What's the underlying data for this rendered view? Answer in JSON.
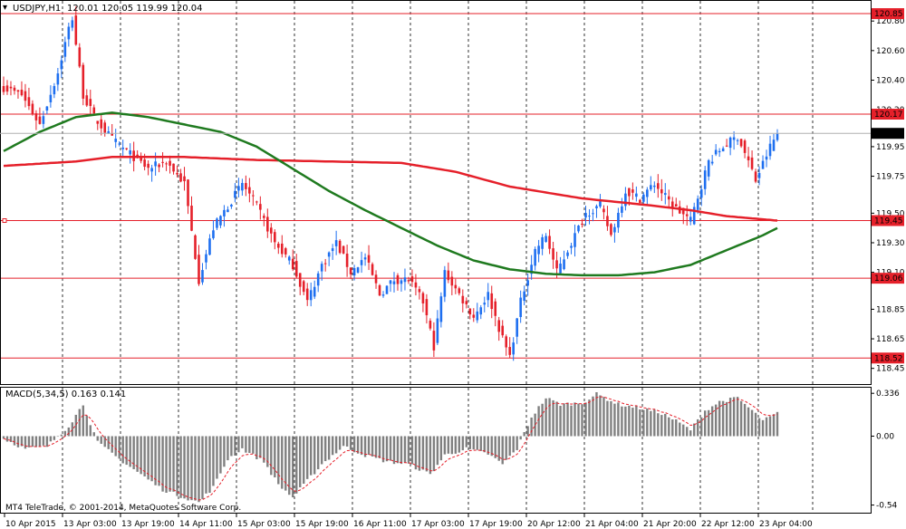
{
  "header": {
    "symbol": "USDJPY,H1",
    "ohlc": "120.01 120.05 119.99 120.04"
  },
  "macd_header": "MACD(5,34,5) 0.163 0.141",
  "copyright": "MT4 TeleTrade, © 2001-2014, MetaQuotes Software Corp.",
  "colors": {
    "bull": "#1e6ff0",
    "bear": "#e5202a",
    "ma_fast": "#1f7a1f",
    "ma_slow": "#e5202a",
    "level": "#e5202a",
    "hist": "#808080",
    "signal": "#e5202a"
  },
  "chart_data": {
    "type": "candlestick",
    "price_axis": {
      "range": [
        118.35,
        120.93
      ],
      "ticks": [
        "120.80",
        "120.60",
        "120.40",
        "120.20",
        "119.95",
        "119.75",
        "119.50",
        "119.30",
        "119.10",
        "118.85",
        "118.65",
        "118.45"
      ]
    },
    "levels": [
      {
        "value": 120.85,
        "label": "120.85"
      },
      {
        "value": 120.17,
        "label": "120.17"
      },
      {
        "value": 119.45,
        "label": "119.45"
      },
      {
        "value": 119.06,
        "label": "119.06"
      },
      {
        "value": 118.52,
        "label": "118.52"
      }
    ],
    "current_price": {
      "value": 120.04,
      "label": "120.04"
    },
    "time_labels": [
      "10 Apr 2015",
      "13 Apr 03:00",
      "13 Apr 19:00",
      "14 Apr 11:00",
      "15 Apr 03:00",
      "15 Apr 19:00",
      "16 Apr 11:00",
      "17 Apr 03:00",
      "17 Apr 19:00",
      "20 Apr 12:00",
      "21 Apr 04:00",
      "21 Apr 20:00",
      "22 Apr 12:00",
      "23 Apr 04:00"
    ],
    "macd_axis": {
      "range": [
        -0.6,
        0.38
      ],
      "ticks": [
        "0.336",
        "0.00",
        "-0.54"
      ]
    },
    "close_keypoints": [
      [
        0,
        120.35
      ],
      [
        5,
        120.3
      ],
      [
        10,
        120.1
      ],
      [
        15,
        120.45
      ],
      [
        18,
        120.75
      ],
      [
        19,
        120.82
      ],
      [
        22,
        120.3
      ],
      [
        25,
        120.15
      ],
      [
        30,
        120.0
      ],
      [
        35,
        119.9
      ],
      [
        40,
        119.8
      ],
      [
        45,
        119.85
      ],
      [
        50,
        119.7
      ],
      [
        54,
        119.05
      ],
      [
        58,
        119.4
      ],
      [
        62,
        119.55
      ],
      [
        66,
        119.7
      ],
      [
        70,
        119.55
      ],
      [
        75,
        119.3
      ],
      [
        80,
        119.15
      ],
      [
        84,
        118.9
      ],
      [
        88,
        119.15
      ],
      [
        92,
        119.3
      ],
      [
        96,
        119.1
      ],
      [
        100,
        119.2
      ],
      [
        104,
        118.95
      ],
      [
        108,
        119.05
      ],
      [
        112,
        119.05
      ],
      [
        116,
        118.9
      ],
      [
        119,
        118.6
      ],
      [
        122,
        119.1
      ],
      [
        126,
        118.95
      ],
      [
        130,
        118.8
      ],
      [
        134,
        118.95
      ],
      [
        138,
        118.65
      ],
      [
        140,
        118.53
      ],
      [
        143,
        118.9
      ],
      [
        147,
        119.25
      ],
      [
        150,
        119.35
      ],
      [
        153,
        119.1
      ],
      [
        157,
        119.3
      ],
      [
        161,
        119.5
      ],
      [
        165,
        119.55
      ],
      [
        168,
        119.35
      ],
      [
        172,
        119.65
      ],
      [
        176,
        119.6
      ],
      [
        180,
        119.7
      ],
      [
        185,
        119.55
      ],
      [
        190,
        119.45
      ],
      [
        195,
        119.85
      ],
      [
        199,
        119.95
      ],
      [
        203,
        120.02
      ],
      [
        206,
        119.85
      ],
      [
        208,
        119.72
      ],
      [
        212,
        119.95
      ],
      [
        214,
        120.04
      ]
    ],
    "ma_fast_keypoints": [
      [
        0,
        119.92
      ],
      [
        10,
        120.05
      ],
      [
        20,
        120.15
      ],
      [
        30,
        120.18
      ],
      [
        40,
        120.15
      ],
      [
        50,
        120.1
      ],
      [
        60,
        120.05
      ],
      [
        70,
        119.95
      ],
      [
        80,
        119.8
      ],
      [
        90,
        119.65
      ],
      [
        100,
        119.52
      ],
      [
        110,
        119.4
      ],
      [
        120,
        119.28
      ],
      [
        130,
        119.18
      ],
      [
        140,
        119.12
      ],
      [
        150,
        119.09
      ],
      [
        160,
        119.08
      ],
      [
        170,
        119.08
      ],
      [
        180,
        119.1
      ],
      [
        190,
        119.15
      ],
      [
        200,
        119.25
      ],
      [
        210,
        119.35
      ],
      [
        214,
        119.4
      ]
    ],
    "ma_slow_keypoints": [
      [
        0,
        119.82
      ],
      [
        20,
        119.85
      ],
      [
        30,
        119.88
      ],
      [
        50,
        119.88
      ],
      [
        70,
        119.86
      ],
      [
        90,
        119.85
      ],
      [
        110,
        119.84
      ],
      [
        125,
        119.78
      ],
      [
        140,
        119.68
      ],
      [
        160,
        119.6
      ],
      [
        180,
        119.55
      ],
      [
        190,
        119.52
      ],
      [
        200,
        119.48
      ],
      [
        214,
        119.45
      ]
    ],
    "macd_hist_keypoints": [
      [
        0,
        -0.02
      ],
      [
        6,
        -0.1
      ],
      [
        12,
        -0.08
      ],
      [
        18,
        0.08
      ],
      [
        22,
        0.25
      ],
      [
        26,
        -0.05
      ],
      [
        32,
        -0.18
      ],
      [
        38,
        -0.3
      ],
      [
        44,
        -0.42
      ],
      [
        50,
        -0.48
      ],
      [
        54,
        -0.52
      ],
      [
        58,
        -0.4
      ],
      [
        62,
        -0.18
      ],
      [
        66,
        -0.1
      ],
      [
        72,
        -0.2
      ],
      [
        76,
        -0.38
      ],
      [
        80,
        -0.48
      ],
      [
        84,
        -0.35
      ],
      [
        88,
        -0.22
      ],
      [
        94,
        -0.08
      ],
      [
        100,
        -0.15
      ],
      [
        106,
        -0.2
      ],
      [
        112,
        -0.22
      ],
      [
        118,
        -0.3
      ],
      [
        122,
        -0.15
      ],
      [
        128,
        -0.1
      ],
      [
        134,
        -0.14
      ],
      [
        138,
        -0.22
      ],
      [
        142,
        -0.1
      ],
      [
        146,
        0.15
      ],
      [
        150,
        0.3
      ],
      [
        154,
        0.25
      ],
      [
        160,
        0.26
      ],
      [
        164,
        0.33
      ],
      [
        170,
        0.25
      ],
      [
        176,
        0.22
      ],
      [
        182,
        0.18
      ],
      [
        186,
        0.12
      ],
      [
        190,
        0.05
      ],
      [
        194,
        0.2
      ],
      [
        198,
        0.27
      ],
      [
        203,
        0.3
      ],
      [
        207,
        0.2
      ],
      [
        210,
        0.12
      ],
      [
        214,
        0.18
      ]
    ]
  }
}
